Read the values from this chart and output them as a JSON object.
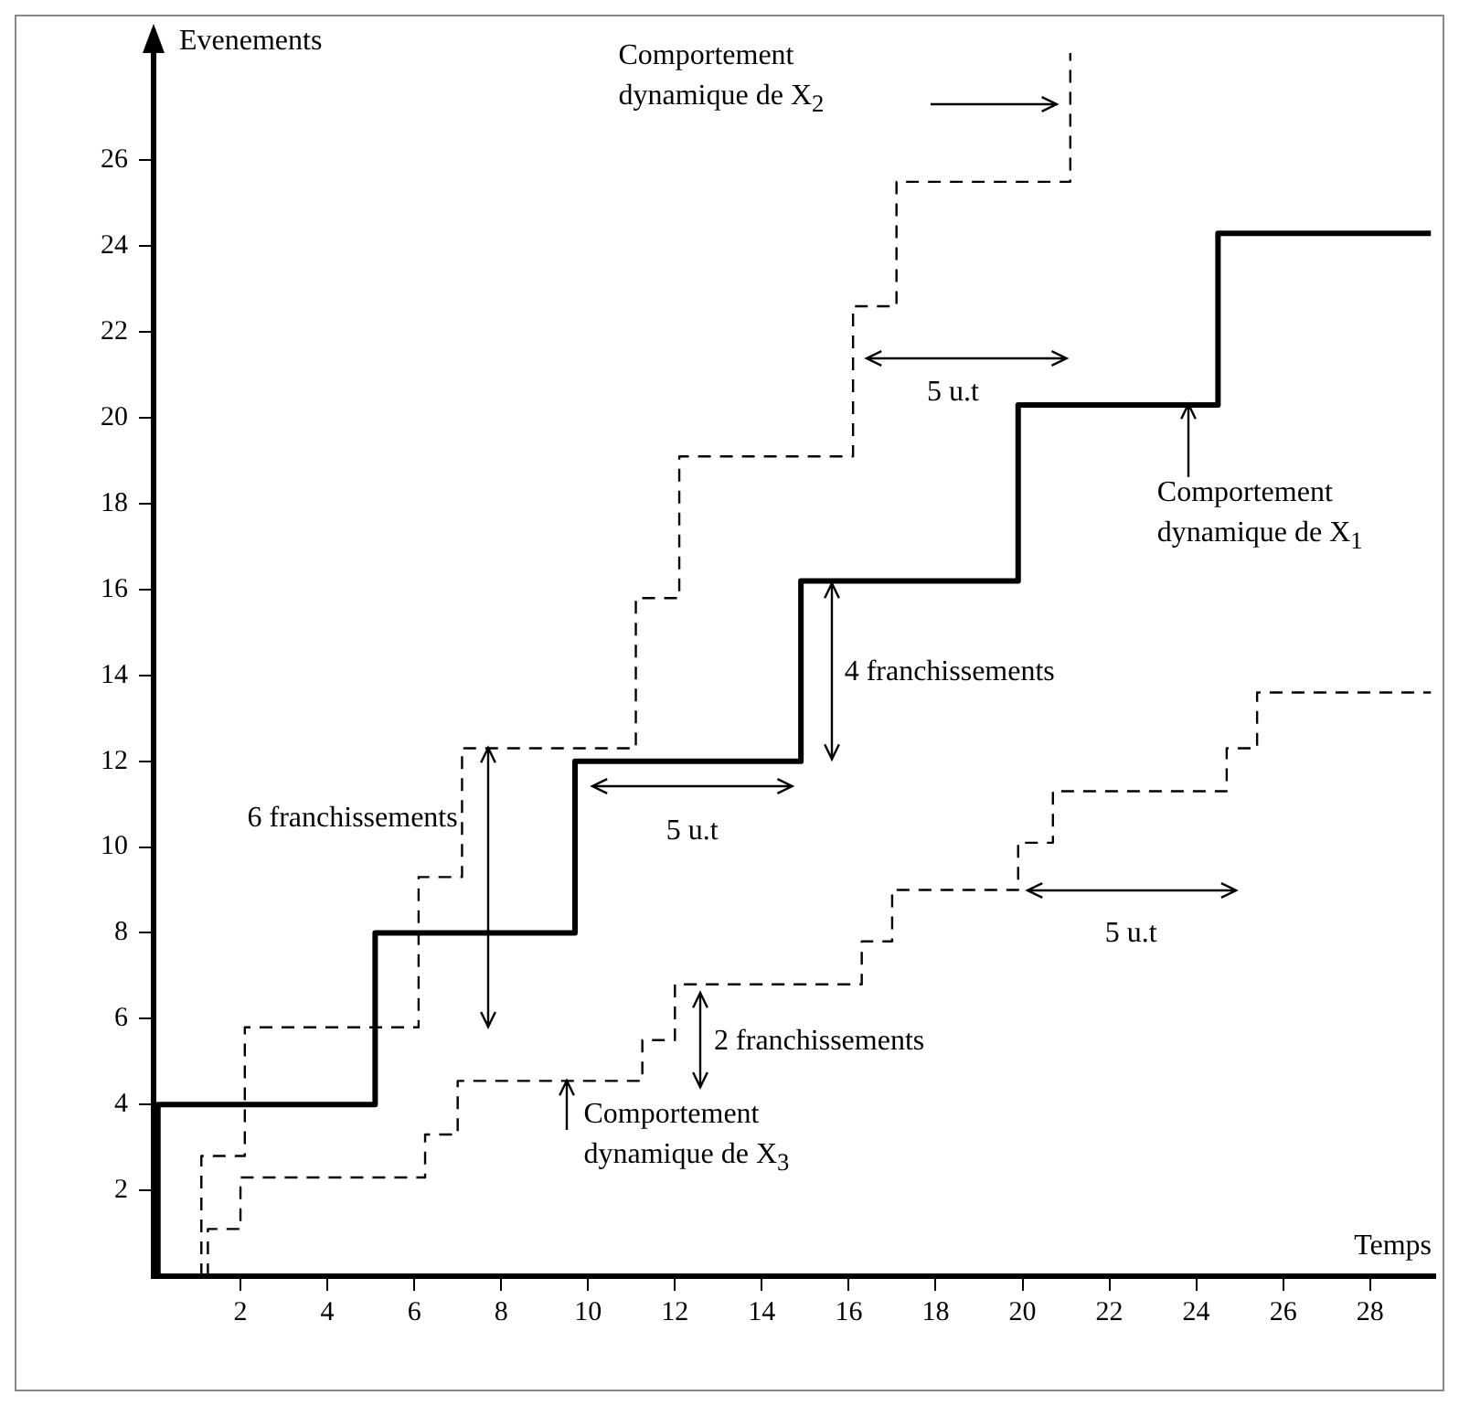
{
  "chart_data": {
    "type": "step",
    "xlabel": "Temps",
    "ylabel": "Evenements",
    "xlim": [
      0,
      29.5
    ],
    "ylim": [
      0,
      28.5
    ],
    "xticks": [
      2,
      4,
      6,
      8,
      10,
      12,
      14,
      16,
      18,
      20,
      22,
      24,
      26,
      28
    ],
    "yticks": [
      2,
      4,
      6,
      8,
      10,
      12,
      14,
      16,
      18,
      20,
      22,
      24,
      26
    ],
    "grid": false,
    "marker": "none",
    "series": [
      {
        "color": "#000000",
        "line_style": "solid",
        "x": [
          0.1,
          0.1,
          5.1,
          9.7,
          14.9,
          19.9,
          24.5,
          29.4
        ],
        "values": [
          0,
          4,
          8,
          12,
          16.2,
          20.3,
          24.3,
          24.3
        ]
      },
      {
        "color": "#000000",
        "line_style": "dashed",
        "x": [
          1.1,
          1.1,
          2.1,
          6.1,
          7.1,
          11.1,
          12.1,
          16.1,
          17.1,
          21.1
        ],
        "values": [
          0,
          2.8,
          5.8,
          9.3,
          12.3,
          15.8,
          19.1,
          22.6,
          25.5,
          28.5
        ]
      },
      {
        "color": "#000000",
        "line_style": "dashed",
        "x": [
          1.25,
          1.25,
          2.0,
          6.25,
          7.0,
          11.25,
          12.0,
          16.3,
          17.0,
          19.9,
          20.7,
          24.7,
          25.4,
          29.4
        ],
        "values": [
          0,
          1.1,
          2.3,
          3.3,
          4.55,
          5.5,
          6.8,
          7.8,
          9.0,
          10.1,
          11.3,
          12.3,
          13.6,
          13.6
        ]
      }
    ],
    "annotations": [
      {
        "text": "Comportement dynamique de X$_{1}$",
        "x": 23.8,
        "y": 20.3
      },
      "Comportement dynamique de X$_{2}$",
      {
        "text": "Comportement dynamique de X$_{3}$",
        "x": 9.5,
        "y": 4.55
      },
      "6 franchissements",
      "4 franchissements",
      "2 franchissements",
      "5 u.t",
      "5 u.t",
      "5 u.t"
    ]
  }
}
